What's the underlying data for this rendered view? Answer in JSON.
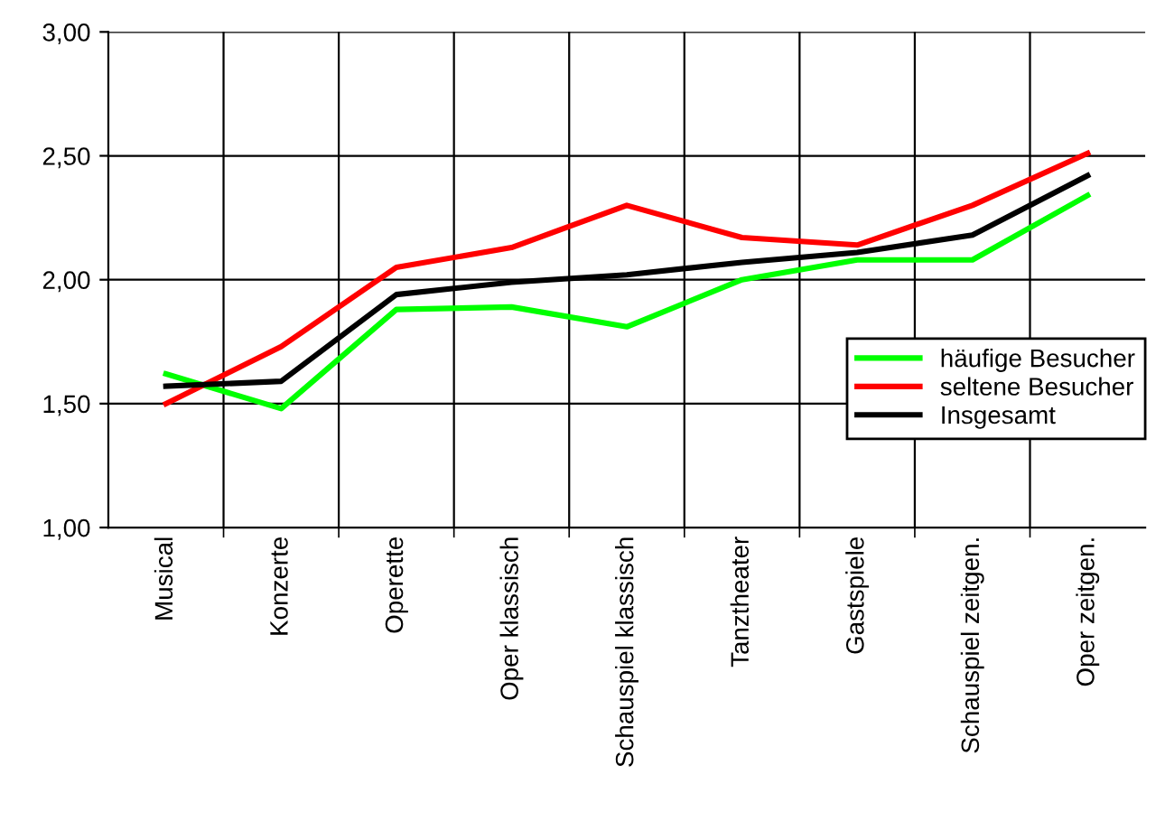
{
  "chart_data": {
    "type": "line",
    "categories": [
      "Musical",
      "Konzerte",
      "Operette",
      "Oper klassisch",
      "Schauspiel klassisch",
      "Tanztheater",
      "Gastspiele",
      "Schauspiel zeitgen.",
      "Oper zeitgen."
    ],
    "series": [
      {
        "name": "häufige Besucher",
        "color": "#00ff00",
        "values": [
          1.62,
          1.48,
          1.88,
          1.89,
          1.81,
          2.0,
          2.08,
          2.08,
          2.34
        ]
      },
      {
        "name": "seltene Besucher",
        "color": "#ff0000",
        "values": [
          1.5,
          1.73,
          2.05,
          2.13,
          2.3,
          2.17,
          2.14,
          2.3,
          2.51
        ]
      },
      {
        "name": "Insgesamt",
        "color": "#000000",
        "values": [
          1.57,
          1.59,
          1.94,
          1.99,
          2.02,
          2.07,
          2.11,
          2.18,
          2.42
        ]
      }
    ],
    "ylim": [
      1,
      3
    ],
    "yticks": [
      {
        "value": 1,
        "label": "1,00"
      },
      {
        "value": 1.5,
        "label": "1,50"
      },
      {
        "value": 2,
        "label": "2,00"
      },
      {
        "value": 2.5,
        "label": "2,50"
      },
      {
        "value": 3,
        "label": "3,00"
      }
    ],
    "grid": true,
    "legend": "right",
    "marker": "none",
    "line_style": "solid"
  }
}
